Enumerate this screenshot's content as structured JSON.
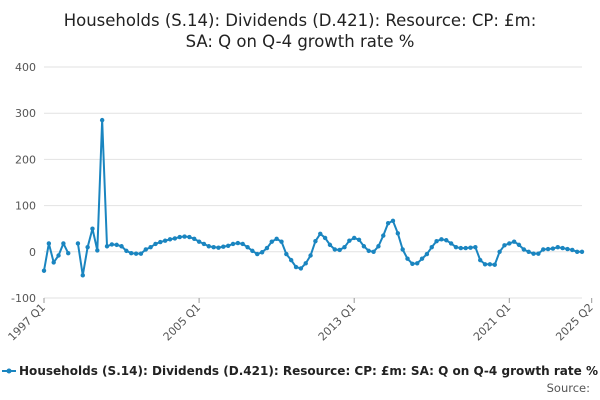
{
  "chart_data": {
    "type": "line",
    "title_lines": [
      "Households (S.14): Dividends (D.421): Resource: CP: £m:",
      "SA: Q on Q-4 growth rate %"
    ],
    "xlabel": "",
    "ylabel": "",
    "ylim": [
      -100,
      400
    ],
    "y_ticks": [
      "400",
      "300",
      "200",
      "100",
      "0",
      "-100"
    ],
    "x_ticks": [
      {
        "label": "1997 Q1",
        "index": 0
      },
      {
        "label": "2005 Q1",
        "index": 32
      },
      {
        "label": "2013 Q1",
        "index": 64
      },
      {
        "label": "2021 Q1",
        "index": 96
      },
      {
        "label": "2025 Q2",
        "index": 113
      }
    ],
    "grid": "horizontal",
    "legend_position": "bottom",
    "series": [
      {
        "name": "Households (S.14): Dividends (D.421): Resource: CP: £m: SA: Q on Q-4 growth rate %",
        "color": "#1a85c0",
        "values": [
          -41,
          18,
          -23,
          -8,
          18,
          -3,
          null,
          18,
          -51,
          10,
          50,
          3,
          285,
          12,
          16,
          15,
          12,
          2,
          -3,
          -4,
          -4,
          5,
          10,
          17,
          21,
          24,
          27,
          29,
          32,
          33,
          32,
          28,
          22,
          17,
          12,
          10,
          9,
          11,
          13,
          17,
          19,
          17,
          10,
          2,
          -5,
          -1,
          8,
          22,
          28,
          22,
          -5,
          -18,
          -33,
          -36,
          -25,
          -8,
          23,
          39,
          30,
          15,
          5,
          4,
          10,
          24,
          30,
          26,
          12,
          2,
          0,
          12,
          35,
          62,
          67,
          40,
          5,
          -15,
          -26,
          -25,
          -15,
          -5,
          10,
          23,
          27,
          25,
          18,
          10,
          8,
          8,
          9,
          10,
          -18,
          -27,
          -27,
          -28,
          0,
          14,
          18,
          22,
          15,
          5,
          0,
          -4,
          -4,
          5,
          6,
          7,
          10,
          8,
          6,
          4,
          0,
          0
        ]
      }
    ]
  },
  "source_label": "Source:"
}
